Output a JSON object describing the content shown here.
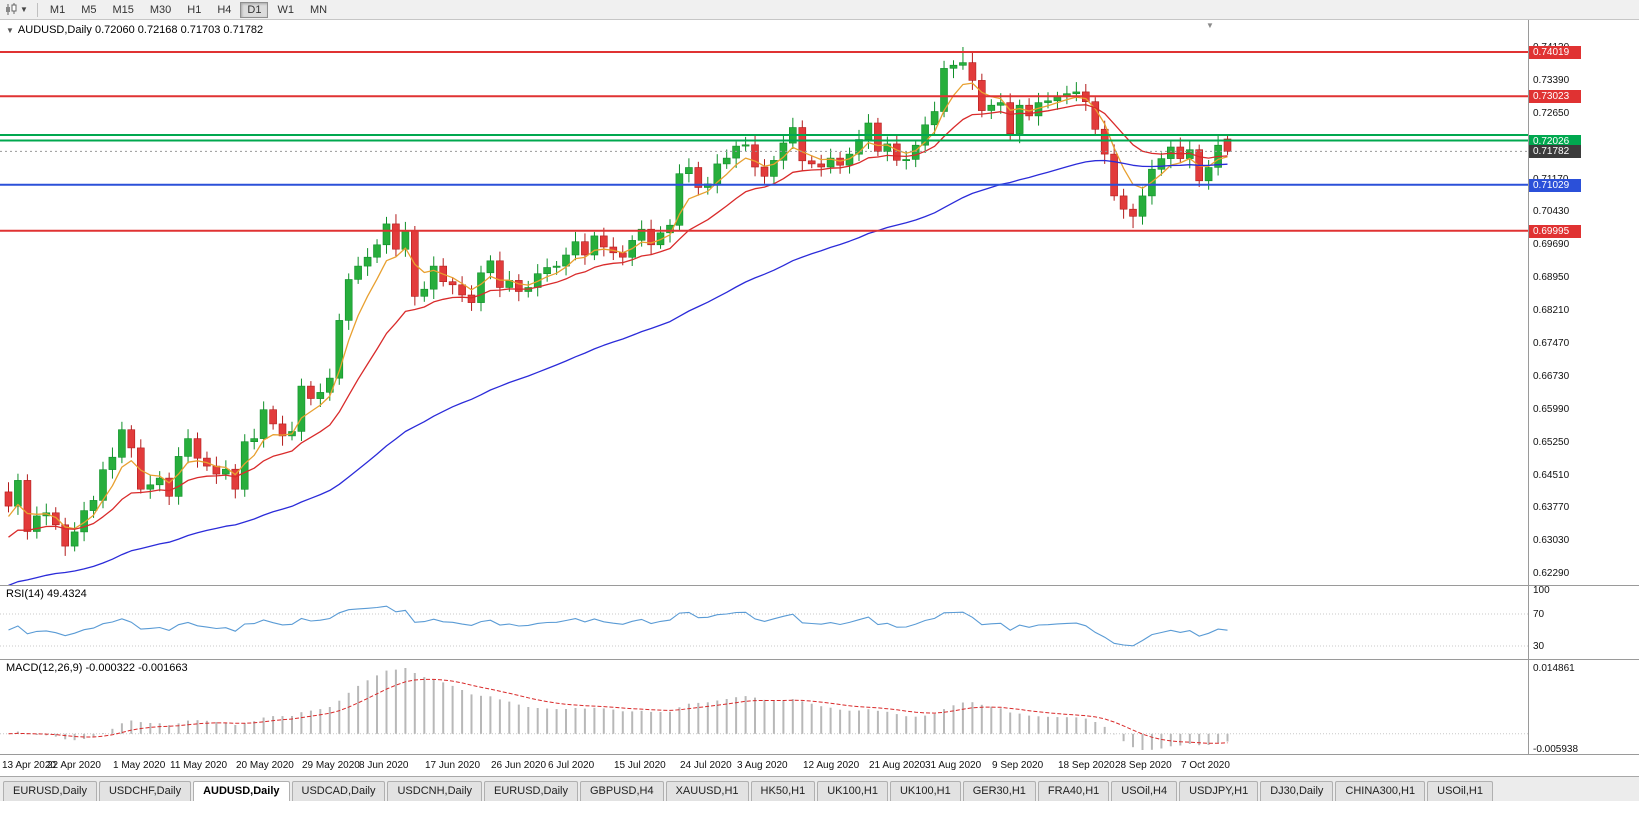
{
  "toolbar": {
    "timeframes": [
      "M1",
      "M5",
      "M15",
      "M30",
      "H1",
      "H4",
      "D1",
      "W1",
      "MN"
    ],
    "active_timeframe": "D1"
  },
  "chart": {
    "title_symbol": "AUDUSD,Daily",
    "title_ohlc": "0.72060 0.72168 0.71703 0.71782"
  },
  "indicators": {
    "rsi": {
      "name": "RSI(14)",
      "value": "49.4324",
      "levels": [
        "100",
        "70",
        "30"
      ],
      "level_values": [
        100,
        70,
        30
      ]
    },
    "macd": {
      "name": "MACD(12,26,9)",
      "values": "-0.000322 -0.001663",
      "scale_max": "0.014861",
      "scale_min": "-0.005938"
    }
  },
  "chart_data": {
    "type": "candlestick",
    "title": "AUDUSD,Daily",
    "symbol": "AUDUSD",
    "timeframe": "Daily",
    "last_ohlc": {
      "open": 0.7206,
      "high": 0.72168,
      "low": 0.71703,
      "close": 0.71782
    },
    "price_axis": {
      "tick_min": 0.6229,
      "tick_step": 0.0074,
      "tick_count": 17
    },
    "first_open": 0.6412,
    "closes": [
      0.638,
      0.6438,
      0.6323,
      0.6358,
      0.6365,
      0.6338,
      0.629,
      0.6322,
      0.637,
      0.6393,
      0.6462,
      0.649,
      0.6552,
      0.6511,
      0.6418,
      0.6428,
      0.6443,
      0.6402,
      0.6492,
      0.6532,
      0.6488,
      0.647,
      0.6452,
      0.6463,
      0.6418,
      0.6525,
      0.6532,
      0.6597,
      0.6565,
      0.6538,
      0.6548,
      0.665,
      0.6622,
      0.6636,
      0.6668,
      0.6798,
      0.689,
      0.692,
      0.694,
      0.6968,
      0.7015,
      0.6958,
      0.7,
      0.6852,
      0.6868,
      0.692,
      0.6885,
      0.6878,
      0.6855,
      0.6838,
      0.6905,
      0.6932,
      0.6872,
      0.6888,
      0.6863,
      0.6872,
      0.6903,
      0.6917,
      0.692,
      0.6945,
      0.6975,
      0.6945,
      0.6988,
      0.6963,
      0.695,
      0.694,
      0.6978,
      0.7003,
      0.6968,
      0.6995,
      0.7012,
      0.7128,
      0.7142,
      0.7097,
      0.7105,
      0.715,
      0.7163,
      0.719,
      0.7193,
      0.7143,
      0.7122,
      0.7158,
      0.7197,
      0.7232,
      0.7157,
      0.715,
      0.7143,
      0.7163,
      0.7147,
      0.7172,
      0.7205,
      0.7242,
      0.7178,
      0.7195,
      0.7158,
      0.716,
      0.7192,
      0.7238,
      0.7268,
      0.7365,
      0.7372,
      0.7378,
      0.7338,
      0.727,
      0.7282,
      0.7288,
      0.7218,
      0.7282,
      0.7258,
      0.7288,
      0.7292,
      0.7302,
      0.7308,
      0.7312,
      0.729,
      0.7228,
      0.7172,
      0.7078,
      0.7048,
      0.7032,
      0.7078,
      0.7138,
      0.7162,
      0.7188,
      0.7162,
      0.7182,
      0.7112,
      0.7142,
      0.7192,
      0.71782
    ],
    "overrides": {
      "101": {
        "h": 0.7413
      },
      "119": {
        "l": 0.70055
      },
      "129": {
        "o": 0.7206,
        "h": 0.72168,
        "l": 0.71703,
        "c": 0.71782
      }
    },
    "up_color": "#27AE3C",
    "up_border": "#0E8F28",
    "down_color": "#E23B3B",
    "down_border": "#B21B1B",
    "moving_averages": [
      {
        "name": "ma-fast-line",
        "period": 5,
        "seed": 0.6345,
        "color": "#E8A030"
      },
      {
        "name": "ma-mid-line",
        "period": 15,
        "seed": 0.63,
        "color": "#D92B2B"
      },
      {
        "name": "ma-slow-line",
        "period": 55,
        "seed": 0.6195,
        "color": "#2B2BD9"
      }
    ],
    "hlines": [
      {
        "price": 0.74019,
        "label": "0.74019",
        "color": "#E03232",
        "width": 2
      },
      {
        "price": 0.73023,
        "label": "0.73023",
        "color": "#E03232",
        "width": 2
      },
      {
        "price": 0.7215,
        "label": null,
        "color": "#00A84F",
        "width": 2
      },
      {
        "price": 0.72026,
        "label": "0.72026",
        "color": "#00A84F",
        "width": 2
      },
      {
        "price": 0.71029,
        "label": "0.71029",
        "color": "#2B50D9",
        "width": 2
      },
      {
        "price": 0.69995,
        "label": "0.69995",
        "color": "#E03232",
        "width": 2
      }
    ],
    "current_price": {
      "value": 0.71782,
      "label": "0.71782",
      "badge_color": "#3C3C3C"
    },
    "date_labels": [
      {
        "text": "13 Apr 2020",
        "index": 0
      },
      {
        "text": "22 Apr 2020",
        "index": 7
      },
      {
        "text": "1 May 2020",
        "index": 14
      },
      {
        "text": "11 May 2020",
        "index": 20
      },
      {
        "text": "20 May 2020",
        "index": 27
      },
      {
        "text": "29 May 2020",
        "index": 34
      },
      {
        "text": "8 Jun 2020",
        "index": 40
      },
      {
        "text": "17 Jun 2020",
        "index": 47
      },
      {
        "text": "26 Jun 2020",
        "index": 54
      },
      {
        "text": "6 Jul 2020",
        "index": 60
      },
      {
        "text": "15 Jul 2020",
        "index": 67
      },
      {
        "text": "24 Jul 2020",
        "index": 74
      },
      {
        "text": "3 Aug 2020",
        "index": 80
      },
      {
        "text": "12 Aug 2020",
        "index": 87
      },
      {
        "text": "21 Aug 2020",
        "index": 94
      },
      {
        "text": "31 Aug 2020",
        "index": 100
      },
      {
        "text": "9 Sep 2020",
        "index": 107
      },
      {
        "text": "18 Sep 2020",
        "index": 114
      },
      {
        "text": "28 Sep 2020",
        "index": 120
      },
      {
        "text": "7 Oct 2020",
        "index": 127
      }
    ]
  },
  "tabs": {
    "active_index": 2,
    "items": [
      "EURUSD,Daily",
      "USDCHF,Daily",
      "AUDUSD,Daily",
      "USDCAD,Daily",
      "USDCNH,Daily",
      "EURUSD,Daily",
      "GBPUSD,H4",
      "XAUUSD,H1",
      "HK50,H1",
      "UK100,H1",
      "UK100,H1",
      "GER30,H1",
      "FRA40,H1",
      "USOil,H4",
      "USDJPY,H1",
      "DJ30,Daily",
      "CHINA300,H1",
      "USOil,H1"
    ]
  }
}
